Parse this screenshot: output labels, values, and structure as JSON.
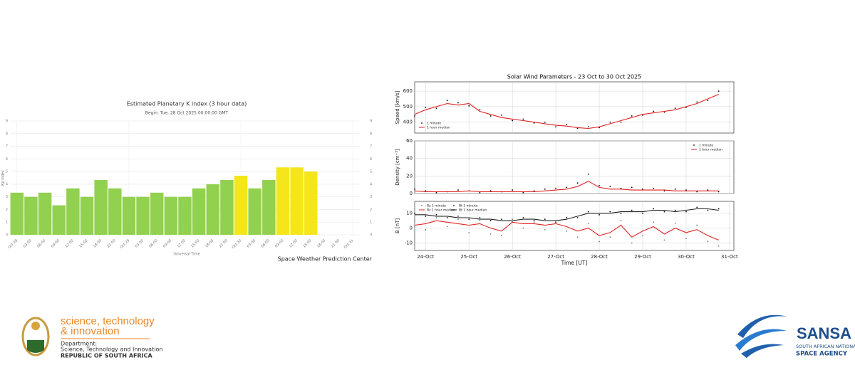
{
  "chart_data": [
    {
      "type": "bar",
      "title": "Estimated Planetary K index (3 hour data)",
      "subtitle": "Begin: Tue, 28 Oct 2025 00:00:00 GMT",
      "ylabel": "Kp index",
      "xlabel": "Universal Time",
      "credit": "Space Weather Prediction Center",
      "categories": [
        "Oct 28",
        "03:00",
        "06:00",
        "09:00",
        "12:00",
        "15:00",
        "18:00",
        "21:00",
        "Oct 29",
        "03:00",
        "06:00",
        "09:00",
        "12:00",
        "15:00",
        "18:00",
        "21:00",
        "Oct 30",
        "03:00",
        "06:00",
        "09:00",
        "12:00",
        "15:00",
        "18:00",
        "21:00",
        "Oct 31"
      ],
      "values": [
        3.33,
        3.0,
        3.33,
        2.33,
        3.67,
        3.0,
        4.33,
        3.67,
        3.0,
        3.0,
        3.33,
        3.0,
        3.0,
        3.67,
        4.0,
        4.33,
        4.67,
        3.67,
        4.33,
        5.33,
        5.33,
        5.0,
        null,
        null,
        null
      ],
      "colors": [
        "#92d050",
        "#92d050",
        "#92d050",
        "#92d050",
        "#92d050",
        "#92d050",
        "#92d050",
        "#92d050",
        "#92d050",
        "#92d050",
        "#92d050",
        "#92d050",
        "#92d050",
        "#92d050",
        "#92d050",
        "#92d050",
        "#f5e51b",
        "#92d050",
        "#92d050",
        "#f5e51b",
        "#f5e51b",
        "#f5e51b",
        null,
        null,
        null
      ],
      "ylim": [
        0,
        9
      ],
      "yticks": [
        0,
        1,
        2,
        3,
        4,
        5,
        6,
        7,
        8,
        9
      ],
      "grid": true
    },
    {
      "type": "line",
      "title": "Solar Wind Parameters - 23 Oct to 30 Oct 2025",
      "xlabel": "Time [UT]",
      "x": [
        23.75,
        24.0,
        24.25,
        24.5,
        24.75,
        25.0,
        25.25,
        25.5,
        25.75,
        26.0,
        26.25,
        26.5,
        26.75,
        27.0,
        27.25,
        27.5,
        27.75,
        28.0,
        28.25,
        28.5,
        28.75,
        29.0,
        29.25,
        29.5,
        29.75,
        30.0,
        30.25,
        30.5,
        30.75
      ],
      "xlim": [
        23.75,
        31.1
      ],
      "xticks": [
        {
          "value": 24,
          "label": "24-Oct"
        },
        {
          "value": 25,
          "label": "25-Oct"
        },
        {
          "value": 26,
          "label": "26-Oct"
        },
        {
          "value": 27,
          "label": "27-Oct"
        },
        {
          "value": 28,
          "label": "28-Oct"
        },
        {
          "value": 29,
          "label": "29-Oct"
        },
        {
          "value": 30,
          "label": "30-Oct"
        },
        {
          "value": 31,
          "label": "31-Oct"
        }
      ],
      "grid": true,
      "panels": [
        {
          "ylabel": "Speed [km/s]",
          "ylim": [
            330,
            660
          ],
          "yticks": [
            400,
            500,
            600
          ],
          "legend": "lower left",
          "series": [
            {
              "name": "1 minute",
              "color": "#000000",
              "style": "dots",
              "values": [
                440,
                495,
                490,
                540,
                525,
                505,
                480,
                440,
                445,
                410,
                420,
                395,
                400,
                370,
                385,
                360,
                370,
                365,
                400,
                400,
                440,
                445,
                470,
                465,
                490,
                495,
                530,
                540,
                600
              ]
            },
            {
              "name": "1 hour median",
              "color": "#e02020",
              "style": "line",
              "values": [
                450,
                480,
                500,
                520,
                510,
                520,
                470,
                450,
                430,
                420,
                410,
                400,
                390,
                380,
                375,
                365,
                360,
                370,
                390,
                410,
                430,
                450,
                460,
                470,
                480,
                500,
                520,
                550,
                580
              ]
            }
          ]
        },
        {
          "ylabel": "Density [cm⁻³]",
          "ylim": [
            0,
            60
          ],
          "yticks": [
            0,
            20,
            40,
            60
          ],
          "legend": "upper right",
          "series": [
            {
              "name": "1 minute",
              "color": "#000000",
              "style": "dots",
              "values": [
                5,
                3,
                1,
                2,
                4,
                3,
                1,
                3,
                2,
                4,
                1,
                3,
                5,
                6,
                7,
                12,
                22,
                9,
                8,
                6,
                7,
                5,
                6,
                3,
                5,
                4,
                2,
                4,
                2
              ]
            },
            {
              "name": "1 hour median",
              "color": "#e02020",
              "style": "line",
              "values": [
                3,
                2,
                2,
                2,
                2,
                3,
                2,
                2,
                2,
                2,
                2,
                2,
                3,
                4,
                5,
                8,
                14,
                7,
                5,
                5,
                4,
                4,
                4,
                4,
                3,
                3,
                3,
                3,
                3
              ]
            }
          ]
        },
        {
          "ylabel": "B [nT]",
          "ylim": [
            -15,
            18
          ],
          "yticks": [
            -10,
            0,
            10
          ],
          "legend": "upper left",
          "series": [
            {
              "name": "Bz 1 minute",
              "color": "#808080",
              "style": "dots",
              "values": [
                5,
                -1,
                7,
                1,
                6,
                -3,
                5,
                -4,
                -5,
                6,
                0,
                4,
                -1,
                5,
                -2,
                -6,
                3,
                -9,
                -6,
                5,
                -10,
                -5,
                4,
                -8,
                3,
                -7,
                2,
                -9,
                -12
              ]
            },
            {
              "name": "Bt 1 minute",
              "color": "#000000",
              "style": "dots",
              "values": [
                10,
                8,
                9,
                7,
                8,
                6,
                7,
                5,
                6,
                4,
                7,
                5,
                6,
                4,
                7,
                7,
                11,
                9,
                11,
                10,
                12,
                10,
                13,
                11,
                12,
                11,
                14,
                12,
                13
              ]
            },
            {
              "name": "Bz 1 hour median",
              "color": "#e02020",
              "style": "line",
              "values": [
                2,
                3,
                5,
                4,
                3,
                2,
                3,
                0,
                -2,
                4,
                3,
                3,
                2,
                3,
                1,
                -2,
                0,
                -5,
                -3,
                2,
                -6,
                -2,
                1,
                -4,
                0,
                -3,
                -1,
                -5,
                -8
              ]
            },
            {
              "name": "Bt 1 hour median",
              "color": "#202020",
              "style": "line",
              "values": [
                9,
                9,
                8,
                8,
                7,
                7,
                6,
                6,
                5,
                5,
                6,
                6,
                5,
                5,
                6,
                8,
                10,
                10,
                10,
                11,
                11,
                11,
                12,
                12,
                11,
                12,
                13,
                13,
                12
              ]
            }
          ]
        }
      ]
    }
  ],
  "logos": {
    "dsti": {
      "line1": "science, technology",
      "line2": "& innovation",
      "dept": "Department:",
      "dept_name": "Science, Technology and Innovation",
      "country": "REPUBLIC OF SOUTH AFRICA"
    },
    "sansa": {
      "name": "SANSA",
      "line1": "SOUTH AFRICAN NATIONAL",
      "line2": "SPACE AGENCY"
    }
  }
}
